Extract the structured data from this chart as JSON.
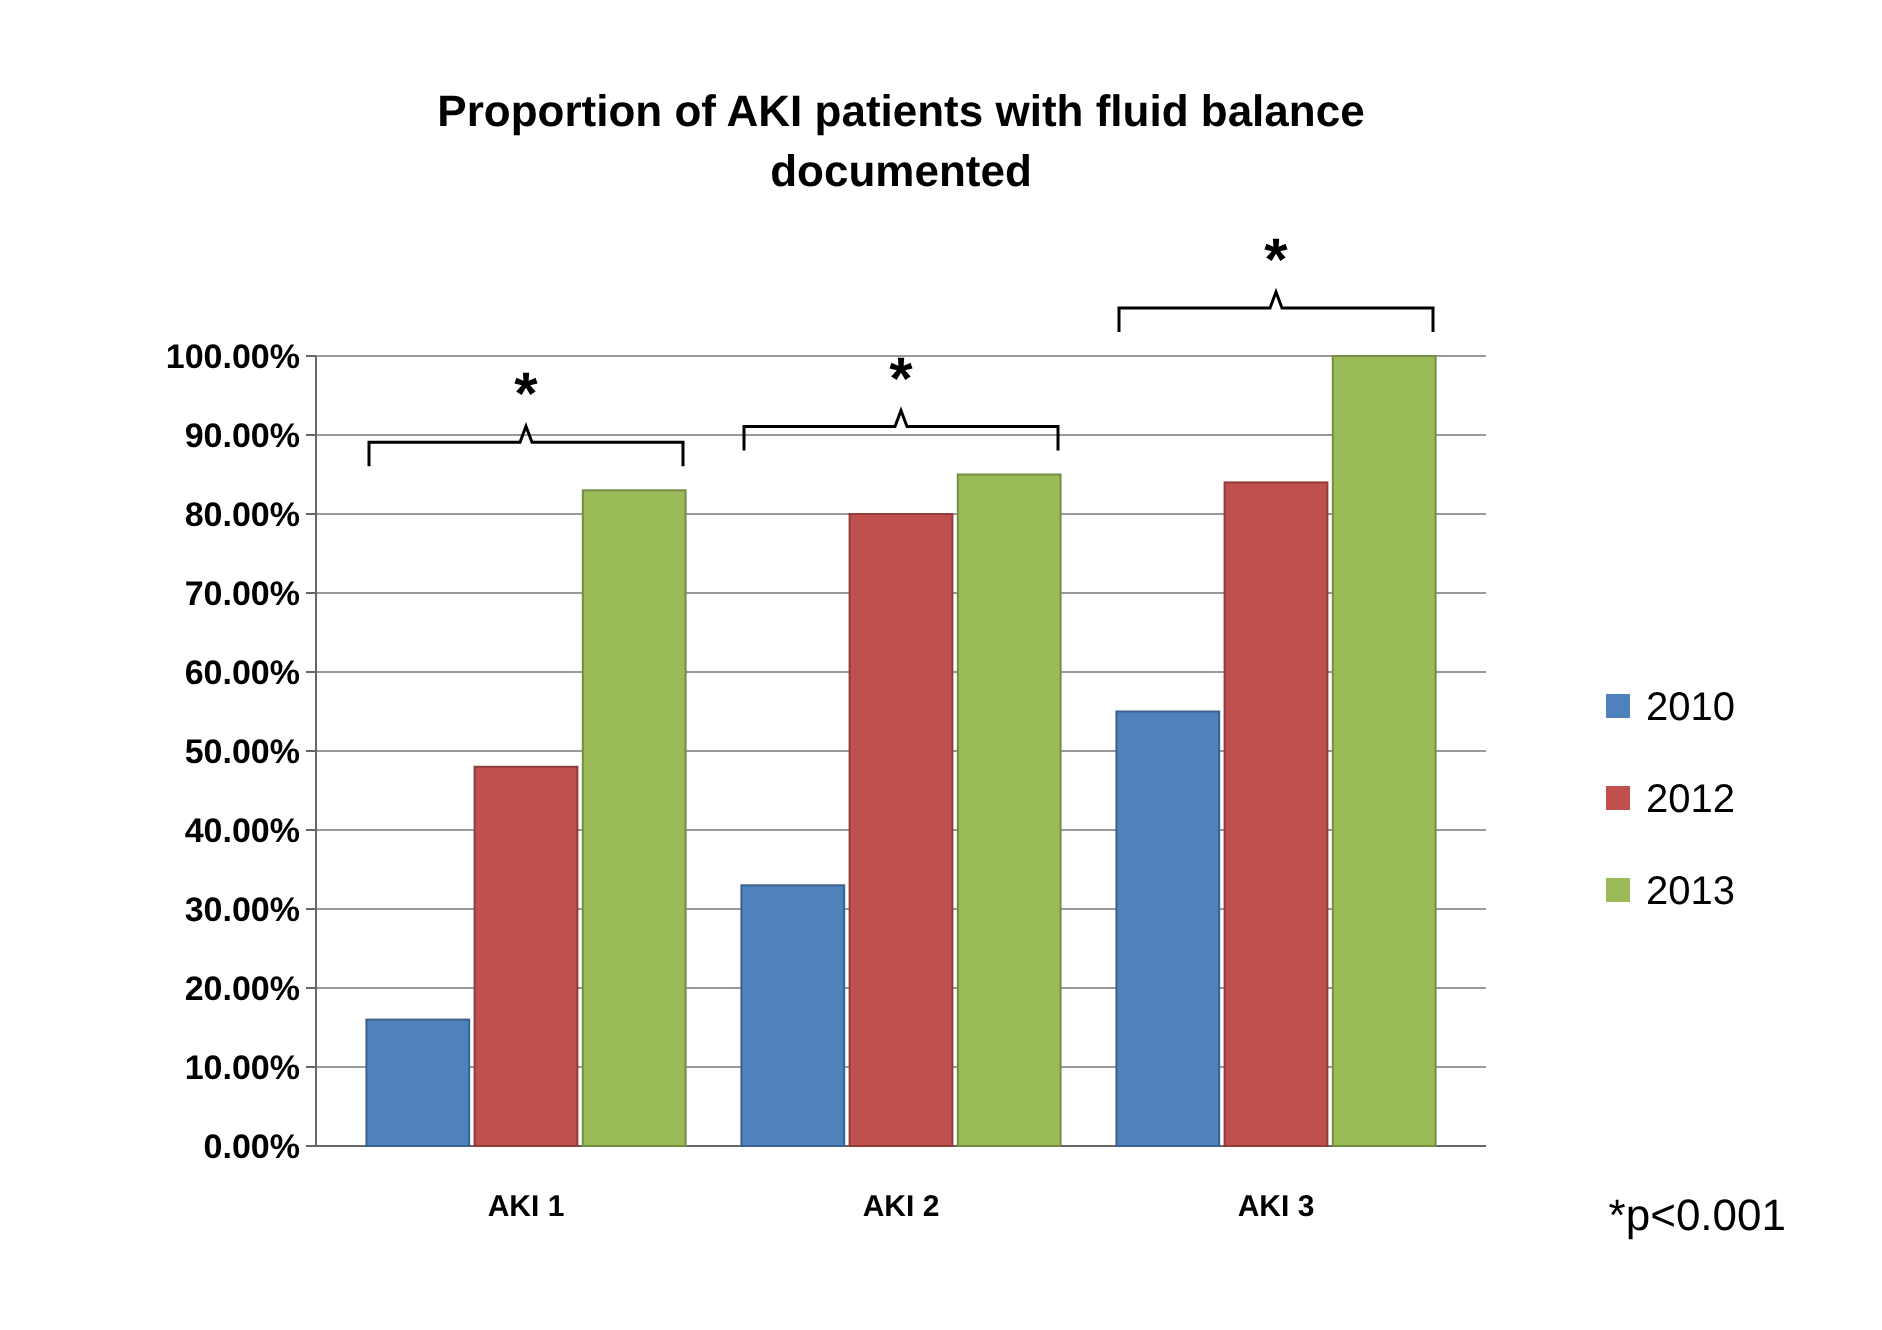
{
  "chart_data": {
    "type": "bar",
    "title": "Proportion of AKI patients with fluid balance documented",
    "categories": [
      "AKI 1",
      "AKI 2",
      "AKI 3"
    ],
    "series": [
      {
        "name": "2010",
        "color": "#4f81bd",
        "values": [
          16,
          33,
          55
        ]
      },
      {
        "name": "2012",
        "color": "#c0504d",
        "values": [
          48,
          80,
          84
        ]
      },
      {
        "name": "2013",
        "color": "#9bbb59",
        "values": [
          83,
          85,
          100
        ]
      }
    ],
    "ylim": [
      0,
      100
    ],
    "yticks": [
      {
        "value": 0,
        "label": "0.00%"
      },
      {
        "value": 10,
        "label": "10.00%"
      },
      {
        "value": 20,
        "label": "20.00%"
      },
      {
        "value": 30,
        "label": "30.00%"
      },
      {
        "value": 40,
        "label": "40.00%"
      },
      {
        "value": 50,
        "label": "50.00%"
      },
      {
        "value": 60,
        "label": "60.00%"
      },
      {
        "value": 70,
        "label": "70.00%"
      },
      {
        "value": 80,
        "label": "80.00%"
      },
      {
        "value": 90,
        "label": "90.00%"
      },
      {
        "value": 100,
        "label": "100.00%"
      }
    ],
    "grid": "y",
    "legend": "right",
    "annotations": [
      "*",
      "*",
      "*",
      "*p<0.001"
    ]
  }
}
